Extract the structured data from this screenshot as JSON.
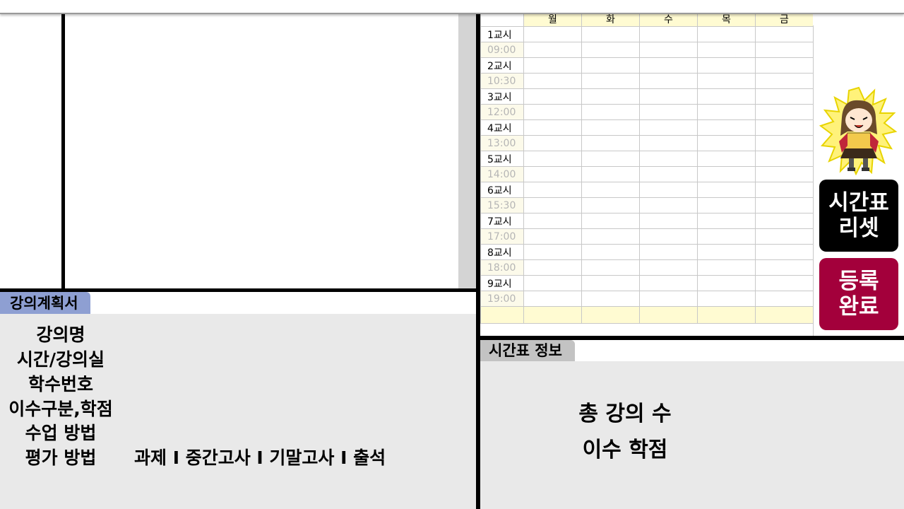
{
  "syllabus": {
    "tab_label": "강의계획서",
    "fields": {
      "course_name": "강의명",
      "time_room": "시간/강의실",
      "course_number": "학수번호",
      "category_credit": "이수구분,학점",
      "teaching_method": "수업 방법",
      "evaluation_method": "평가 방법"
    },
    "evaluation_value": "과제 I 중간고사 I 기말고사 I 출석"
  },
  "timetable": {
    "days": [
      "월",
      "화",
      "수",
      "목",
      "금"
    ],
    "rows": [
      {
        "label": "1교시",
        "kind": "period"
      },
      {
        "label": "09:00",
        "kind": "time"
      },
      {
        "label": "2교시",
        "kind": "period"
      },
      {
        "label": "10:30",
        "kind": "time"
      },
      {
        "label": "3교시",
        "kind": "period"
      },
      {
        "label": "12:00",
        "kind": "time"
      },
      {
        "label": "4교시",
        "kind": "period"
      },
      {
        "label": "13:00",
        "kind": "time"
      },
      {
        "label": "5교시",
        "kind": "period"
      },
      {
        "label": "14:00",
        "kind": "time"
      },
      {
        "label": "6교시",
        "kind": "period"
      },
      {
        "label": "15:30",
        "kind": "time"
      },
      {
        "label": "7교시",
        "kind": "period"
      },
      {
        "label": "17:00",
        "kind": "time"
      },
      {
        "label": "8교시",
        "kind": "period"
      },
      {
        "label": "18:00",
        "kind": "time"
      },
      {
        "label": "9교시",
        "kind": "period"
      },
      {
        "label": "19:00",
        "kind": "time"
      }
    ]
  },
  "buttons": {
    "reset_label": "시간표\n리셋",
    "done_label": "등록\n완료"
  },
  "info": {
    "tab_label": "시간표 정보",
    "total_courses_label": "총 강의 수",
    "credits_label": "이수 학점"
  },
  "colors": {
    "syllabus_tab": "#8e9fd2",
    "info_tab": "#c3c3c3",
    "header_yellow": "#fffbd2",
    "done_button": "#a3003b",
    "reset_button": "#000000"
  },
  "icons": {
    "mascot": "cartoon-character-powering-up-icon"
  }
}
